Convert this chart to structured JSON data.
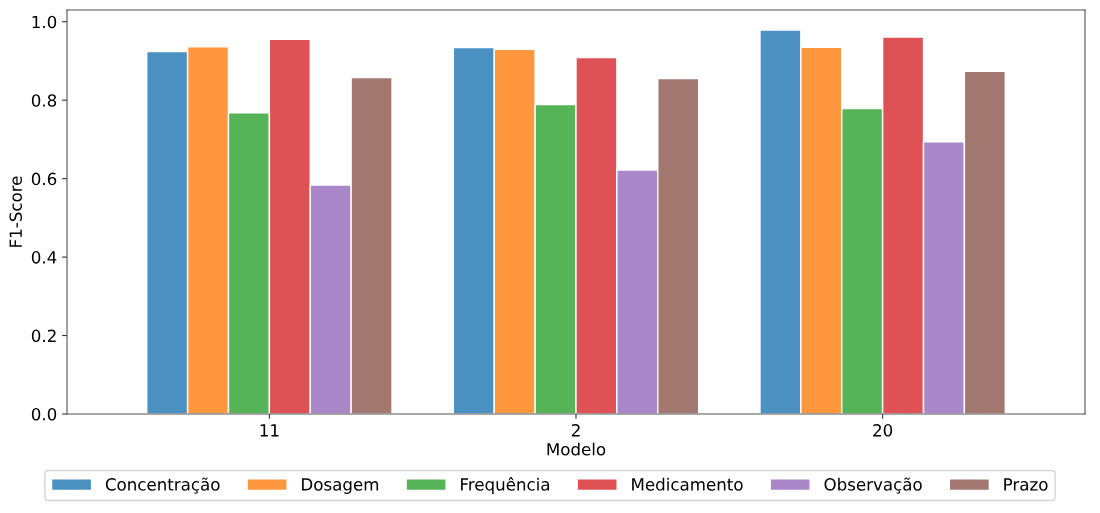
{
  "chart_data": {
    "type": "bar",
    "xlabel": "Modelo",
    "ylabel": "F1-Score",
    "categories": [
      "11",
      "2",
      "20"
    ],
    "series": [
      {
        "name": "Concentração",
        "color": "#4a91c2",
        "values": [
          0.924,
          0.934,
          0.979
        ]
      },
      {
        "name": "Dosagem",
        "color": "#fe973e",
        "values": [
          0.936,
          0.93,
          0.935
        ]
      },
      {
        "name": "Frequência",
        "color": "#57b358",
        "values": [
          0.768,
          0.789,
          0.779
        ]
      },
      {
        "name": "Medicamento",
        "color": "#de5255",
        "values": [
          0.955,
          0.909,
          0.961
        ]
      },
      {
        "name": "Observação",
        "color": "#a987c9",
        "values": [
          0.584,
          0.622,
          0.694
        ]
      },
      {
        "name": "Prazo",
        "color": "#a27770",
        "values": [
          0.858,
          0.855,
          0.874
        ]
      }
    ],
    "ylim": [
      0,
      1.03
    ],
    "yticks": [
      {
        "value": 0,
        "label": "0.0"
      },
      {
        "value": 0.2,
        "label": "0.2"
      },
      {
        "value": 0.4,
        "label": "0.4"
      },
      {
        "value": 0.6,
        "label": "0.6"
      },
      {
        "value": 0.8,
        "label": "0.8"
      },
      {
        "value": 1,
        "label": "1.0"
      }
    ],
    "grid": false,
    "legend": "bottom"
  }
}
